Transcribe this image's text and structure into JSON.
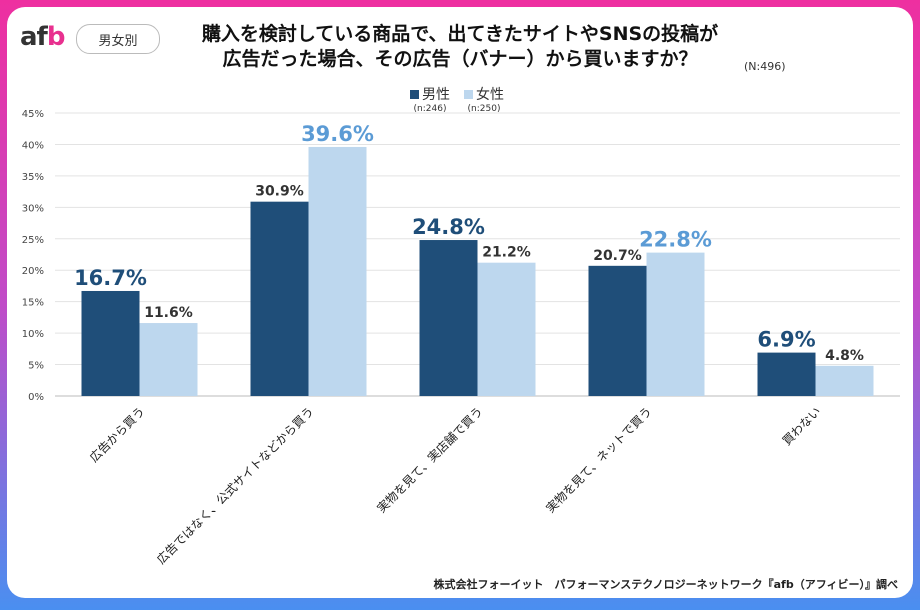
{
  "logo": {
    "text_a": "af",
    "text_b": "b"
  },
  "badge": "男女別",
  "title_line1": "購入を検討している商品で、出てきたサイトやSNSの投稿が",
  "title_line2": "広告だった場合、その広告（バナー）から買いますか？",
  "sample": "(N:496)",
  "footer": "株式会社フォーイット　パフォーマンステクノロジーネットワーク『afb（アフィビー）』調べ",
  "colors": {
    "male": "#1f4e79",
    "female": "#bdd7ee",
    "female_label": "#5b9bd5"
  },
  "chart_data": {
    "type": "bar",
    "categories": [
      "広告から買う",
      "広告ではなく、公式サイトなどから買う",
      "実物を見て、実店舗で買う",
      "実物を見て、ネットで買う",
      "買わない"
    ],
    "series": [
      {
        "name": "男性",
        "n": "(n:246)",
        "values": [
          16.7,
          30.9,
          24.8,
          20.7,
          6.9
        ]
      },
      {
        "name": "女性",
        "n": "(n:250)",
        "values": [
          11.6,
          39.6,
          21.2,
          22.8,
          4.8
        ]
      }
    ],
    "ylim": [
      0,
      45
    ],
    "yticks": [
      "0%",
      "5%",
      "10%",
      "15%",
      "20%",
      "25%",
      "30%",
      "35%",
      "40%",
      "45%"
    ],
    "value_format": "%",
    "grid": true,
    "legend": "top"
  }
}
